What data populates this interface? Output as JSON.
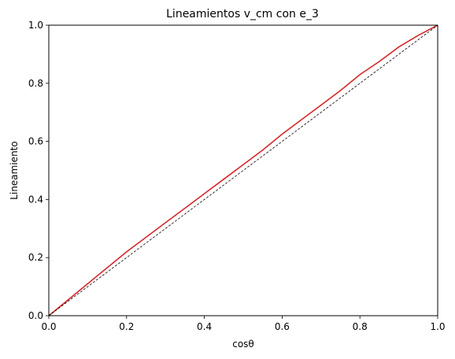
{
  "chart_data": {
    "type": "line",
    "title": "Lineamientos v_cm con e_3",
    "xlabel": "cosθ",
    "ylabel": "Lineamiento",
    "xlim": [
      0,
      1
    ],
    "ylim": [
      0,
      1
    ],
    "grid": false,
    "xticks": [
      0.0,
      0.2,
      0.4,
      0.6,
      0.8,
      1.0
    ],
    "yticks": [
      0.0,
      0.2,
      0.4,
      0.6,
      0.8,
      1.0
    ],
    "xtick_labels": [
      "0.0",
      "0.2",
      "0.4",
      "0.6",
      "0.8",
      "1.0"
    ],
    "ytick_labels": [
      "0.0",
      "0.2",
      "0.4",
      "0.6",
      "0.8",
      "1.0"
    ],
    "series": [
      {
        "style": "solid",
        "color": "#d62728",
        "x": [
          0.0,
          0.05,
          0.1,
          0.15,
          0.2,
          0.25,
          0.3,
          0.35,
          0.4,
          0.45,
          0.5,
          0.55,
          0.6,
          0.65,
          0.7,
          0.75,
          0.8,
          0.85,
          0.9,
          0.95,
          1.0
        ],
        "y": [
          0.0,
          0.055,
          0.11,
          0.165,
          0.22,
          0.27,
          0.32,
          0.37,
          0.42,
          0.47,
          0.52,
          0.57,
          0.625,
          0.675,
          0.725,
          0.775,
          0.83,
          0.875,
          0.925,
          0.965,
          1.0
        ]
      },
      {
        "style": "dashed",
        "color": "#000000",
        "x": [
          0.0,
          1.0
        ],
        "y": [
          0.0,
          1.0
        ]
      }
    ]
  }
}
